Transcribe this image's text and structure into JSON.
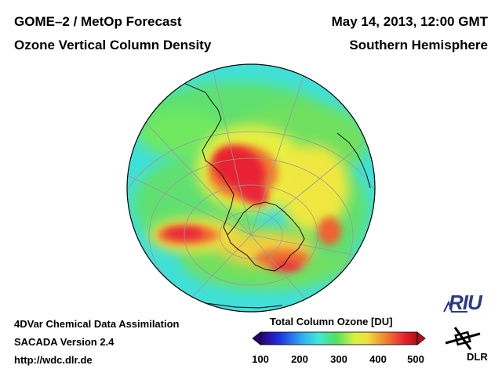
{
  "header": {
    "title_left_1": "GOME–2 / MetOp Forecast",
    "title_left_2": "Ozone Vertical Column Density",
    "title_right_1": "May 14, 2013, 12:00 GMT",
    "title_right_2": "Southern Hemisphere"
  },
  "footer": {
    "line1": "4DVar Chemical Data Assimilation",
    "line2": "SACADA Version 2.4",
    "line3": "http://wdc.dlr.de"
  },
  "colorbar": {
    "title": "Total Column Ozone [DU]",
    "min": 100,
    "max": 500,
    "ticks": [
      "100",
      "200",
      "300",
      "400",
      "500"
    ],
    "colors": [
      "#2a0070",
      "#2030e0",
      "#30b0f0",
      "#40e8d8",
      "#50e060",
      "#d8f040",
      "#f0e040",
      "#f08030",
      "#e82030",
      "#b0101a"
    ]
  },
  "logos": {
    "riu": "RIU",
    "dlr": "DLR"
  },
  "map": {
    "hemisphere": "Southern",
    "base_color": "#40e0d8"
  }
}
